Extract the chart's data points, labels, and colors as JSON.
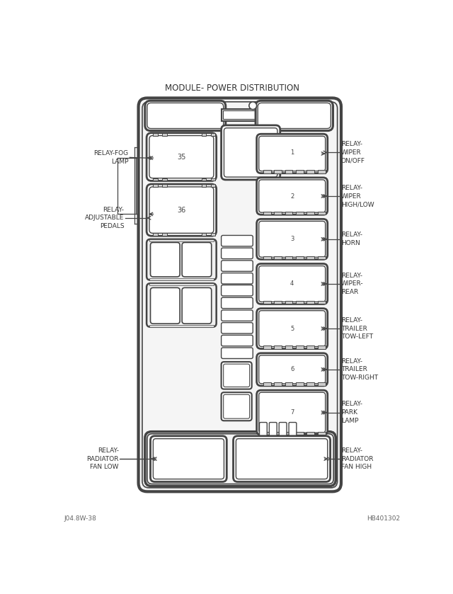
{
  "title": "MODULE- POWER DISTRIBUTION",
  "bg_color": "#ffffff",
  "lc": "#444444",
  "footer_left": "J04.8W-38",
  "footer_right": "HB401302",
  "fig_w": 6.4,
  "fig_h": 8.39,
  "dpi": 100
}
